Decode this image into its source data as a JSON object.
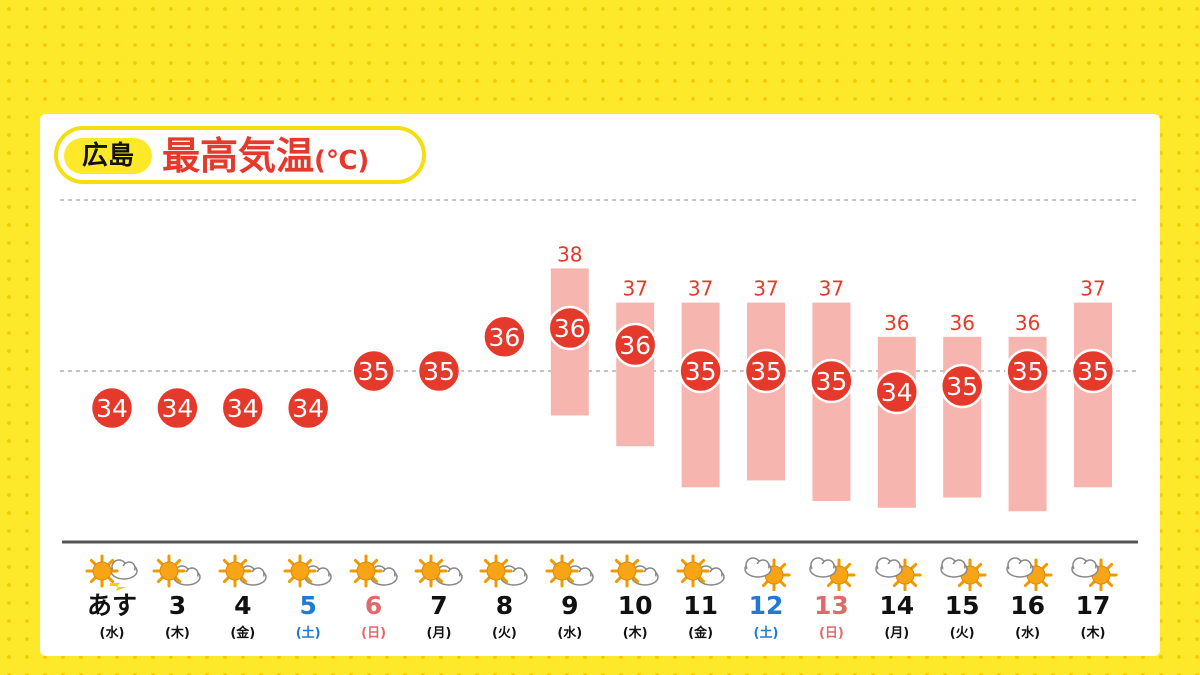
{
  "title": {
    "city": "広島",
    "main": "最高気温",
    "unit": "(℃)"
  },
  "colors": {
    "accent": "#e53a2b",
    "range": "#f7b5b0",
    "saturday": "#1f7ad6",
    "sunday": "#e06a6a",
    "background": "#fde92a"
  },
  "chart_data": {
    "type": "line",
    "title": "最高気温(℃)",
    "xlabel": "",
    "ylabel": "",
    "categories": [
      "あす",
      "3",
      "4",
      "5",
      "6",
      "7",
      "8",
      "9",
      "10",
      "11",
      "12",
      "13",
      "14",
      "15",
      "16",
      "17"
    ],
    "weekdays": [
      "(水)",
      "(木)",
      "(金)",
      "(土)",
      "(日)",
      "(月)",
      "(火)",
      "(水)",
      "(木)",
      "(金)",
      "(土)",
      "(日)",
      "(月)",
      "(火)",
      "(水)",
      "(木)"
    ],
    "day_type": [
      "",
      "",
      "",
      "sat",
      "sun",
      "",
      "",
      "",
      "",
      "",
      "sat",
      "sun",
      "",
      "",
      "",
      ""
    ],
    "weather_icons": [
      "sunny-then-cloudy",
      "sunny-with-clouds",
      "sunny-with-clouds",
      "sunny-with-clouds",
      "sunny-with-clouds",
      "sunny-with-clouds",
      "sunny-with-clouds",
      "sunny-with-clouds",
      "sunny-with-clouds",
      "sunny-with-clouds",
      "cloudy-with-sun",
      "cloudy-with-sun",
      "cloudy-with-sun",
      "cloudy-with-sun",
      "cloudy-with-sun",
      "cloudy-with-sun"
    ],
    "values": [
      34,
      34,
      34,
      34,
      35,
      35,
      36,
      36,
      36,
      35,
      35,
      35,
      34,
      35,
      35,
      35
    ],
    "range_high": [
      null,
      null,
      null,
      null,
      null,
      null,
      null,
      38,
      37,
      37,
      37,
      37,
      36,
      36,
      36,
      37
    ],
    "range_low": [
      null,
      null,
      null,
      null,
      null,
      null,
      null,
      33.7,
      32.8,
      31.6,
      31.8,
      31.2,
      31,
      31.3,
      30.9,
      31.6
    ],
    "ylim": [
      29.5,
      40.2
    ],
    "reference_lines": [
      35,
      40
    ]
  }
}
